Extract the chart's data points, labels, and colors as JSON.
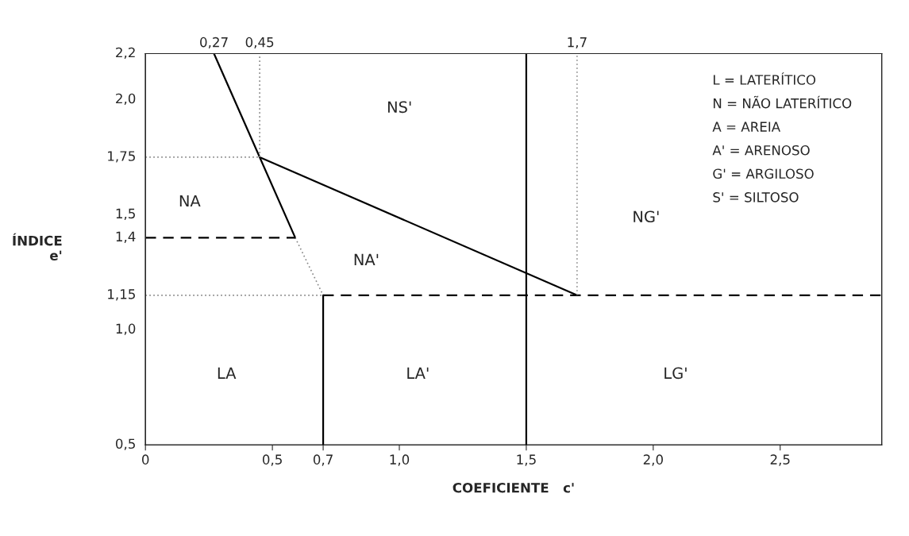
{
  "chart_data": {
    "type": "line",
    "xlabel": "COEFICIENTE   c'",
    "ylabel": "ÍNDICE\ne'",
    "xlim": [
      0,
      2.9
    ],
    "ylim": [
      0.5,
      2.2
    ],
    "xticks": [
      {
        "value": 0,
        "label": "0"
      },
      {
        "value": 0.5,
        "label": "0,5"
      },
      {
        "value": 0.7,
        "label": "0,7"
      },
      {
        "value": 1.0,
        "label": "1,0"
      },
      {
        "value": 1.5,
        "label": "1,5"
      },
      {
        "value": 2.0,
        "label": "2,0"
      },
      {
        "value": 2.5,
        "label": "2,5"
      }
    ],
    "yticks": [
      {
        "value": 0.5,
        "label": "0,5"
      },
      {
        "value": 1.0,
        "label": "1,0"
      },
      {
        "value": 1.15,
        "label": "1,15"
      },
      {
        "value": 1.4,
        "label": "1,4"
      },
      {
        "value": 1.5,
        "label": "1,5"
      },
      {
        "value": 1.75,
        "label": "1,75"
      },
      {
        "value": 2.0,
        "label": "2,0"
      },
      {
        "value": 2.2,
        "label": "2,2"
      }
    ],
    "x2lim": [
      0,
      2.9
    ],
    "x2ticks": [
      {
        "value": 0.27,
        "label": "0,27"
      },
      {
        "value": 0.45,
        "label": "0,45"
      },
      {
        "value": 1.7,
        "label": "1,7"
      }
    ],
    "grid": false,
    "legend": false,
    "marker": "none",
    "series": [
      {
        "color": "#000000",
        "line_style": "solid",
        "x": [
          0.27,
          0.45,
          0.59
        ],
        "values": [
          2.2,
          1.75,
          1.4
        ]
      },
      {
        "color": "#888888",
        "line_style": "dotted",
        "x": [
          0.59,
          0.7
        ],
        "values": [
          1.4,
          1.15
        ]
      },
      {
        "color": "#000000",
        "line_style": "solid",
        "x": [
          0.45,
          1.7
        ],
        "values": [
          1.75,
          1.15
        ]
      },
      {
        "color": "#000000",
        "line_style": "solid",
        "x": [
          1.5,
          1.5
        ],
        "values": [
          2.2,
          0.5
        ]
      },
      {
        "color": "#000000",
        "line_style": "solid",
        "x": [
          0.7,
          0.7
        ],
        "values": [
          1.15,
          0.5
        ]
      },
      {
        "color": "#000000",
        "line_style": "dashed",
        "x": [
          0.7,
          2.9
        ],
        "values": [
          1.15,
          1.15
        ]
      },
      {
        "color": "#888888",
        "line_style": "dotted",
        "x": [
          0,
          0.7
        ],
        "values": [
          1.15,
          1.15
        ]
      },
      {
        "color": "#000000",
        "line_style": "dashed",
        "x": [
          0,
          0.59
        ],
        "values": [
          1.4,
          1.4
        ]
      },
      {
        "color": "#888888",
        "line_style": "dotted",
        "x": [
          0,
          0.45
        ],
        "values": [
          1.75,
          1.75
        ]
      },
      {
        "color": "#888888",
        "line_style": "dotted",
        "x": [
          0.45,
          0.45
        ],
        "values": [
          1.75,
          2.2
        ]
      },
      {
        "color": "#888888",
        "line_style": "dotted",
        "x": [
          1.7,
          1.7
        ],
        "values": [
          1.15,
          2.2
        ]
      }
    ],
    "annotations": [
      "NS'",
      "NA",
      "NA'",
      "NG'",
      "LA",
      "LA'",
      "LG'",
      "L = LATERÍTICO",
      "N = NÃO LATERÍTICO",
      "A = AREIA",
      "A' = ARENOSO",
      "G' = ARGILOSO",
      "S' = SILTOSO"
    ]
  }
}
